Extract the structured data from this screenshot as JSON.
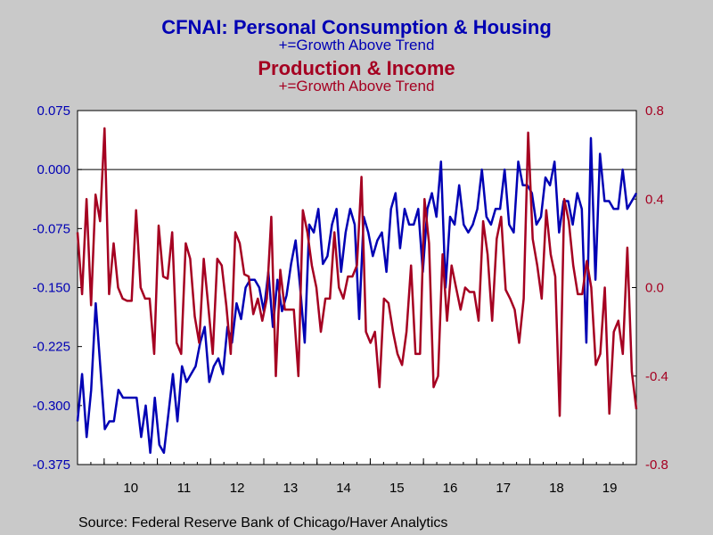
{
  "titles": {
    "blue_title": "CFNAI: Personal Consumption & Housing",
    "blue_subtitle": "+=Growth Above Trend",
    "red_title": "Production & Income",
    "red_subtitle": "+=Growth Above Trend"
  },
  "source": "Source:  Federal Reserve Bank of Chicago/Haver Analytics",
  "colors": {
    "blue": "#0000b4",
    "red": "#a50021",
    "background": "#c9c9c9",
    "plot_background": "#ffffff"
  },
  "chart_data": {
    "type": "line",
    "x": {
      "ticks": [
        "10",
        "11",
        "12",
        "13",
        "14",
        "15",
        "16",
        "17",
        "18",
        "19"
      ]
    },
    "left_axis": {
      "ylim": [
        -0.375,
        0.075
      ],
      "ticks": [
        0.075,
        0.0,
        -0.075,
        -0.15,
        -0.225,
        -0.3,
        -0.375
      ],
      "tick_labels": [
        "0.075",
        "0.000",
        "-0.075",
        "-0.150",
        "-0.225",
        "-0.300",
        "-0.375"
      ],
      "color": "#0000b4"
    },
    "right_axis": {
      "ylim": [
        -0.8,
        0.8
      ],
      "ticks": [
        0.8,
        0.4,
        0.0,
        -0.4,
        -0.8
      ],
      "tick_labels": [
        "0.8",
        "0.4",
        "0.0",
        "-0.4",
        "-0.8"
      ],
      "color": "#a50021"
    },
    "zero_line": true,
    "grid": false,
    "series": [
      {
        "axis": "left",
        "color": "#0000b4",
        "values": [
          -0.32,
          -0.26,
          -0.34,
          -0.28,
          -0.17,
          -0.25,
          -0.33,
          -0.32,
          -0.32,
          -0.28,
          -0.29,
          -0.29,
          -0.29,
          -0.29,
          -0.34,
          -0.3,
          -0.36,
          -0.29,
          -0.35,
          -0.36,
          -0.31,
          -0.26,
          -0.32,
          -0.25,
          -0.27,
          -0.26,
          -0.25,
          -0.22,
          -0.2,
          -0.27,
          -0.25,
          -0.24,
          -0.26,
          -0.2,
          -0.22,
          -0.17,
          -0.19,
          -0.15,
          -0.14,
          -0.14,
          -0.15,
          -0.18,
          -0.13,
          -0.2,
          -0.14,
          -0.18,
          -0.16,
          -0.12,
          -0.09,
          -0.15,
          -0.22,
          -0.07,
          -0.08,
          -0.05,
          -0.12,
          -0.11,
          -0.07,
          -0.05,
          -0.13,
          -0.08,
          -0.05,
          -0.07,
          -0.19,
          -0.06,
          -0.08,
          -0.11,
          -0.09,
          -0.08,
          -0.13,
          -0.05,
          -0.03,
          -0.1,
          -0.05,
          -0.07,
          -0.07,
          -0.05,
          -0.13,
          -0.05,
          -0.03,
          -0.06,
          0.01,
          -0.15,
          -0.06,
          -0.07,
          -0.02,
          -0.07,
          -0.08,
          -0.07,
          -0.05,
          0.0,
          -0.06,
          -0.07,
          -0.05,
          -0.05,
          0.0,
          -0.07,
          -0.08,
          0.01,
          -0.02,
          -0.02,
          -0.03,
          -0.07,
          -0.06,
          -0.01,
          -0.02,
          0.01,
          -0.08,
          -0.04,
          -0.04,
          -0.07,
          -0.03,
          -0.05,
          -0.22,
          0.04,
          -0.14,
          0.02,
          -0.04,
          -0.04,
          -0.05,
          -0.05,
          0.0,
          -0.05,
          -0.04,
          -0.03
        ]
      },
      {
        "axis": "right",
        "color": "#a50021",
        "values": [
          0.25,
          -0.03,
          0.4,
          -0.08,
          0.42,
          0.3,
          0.72,
          -0.03,
          0.2,
          0.0,
          -0.05,
          -0.06,
          -0.06,
          0.35,
          0.0,
          -0.05,
          -0.05,
          -0.3,
          0.28,
          0.05,
          0.04,
          0.25,
          -0.25,
          -0.3,
          0.2,
          0.13,
          -0.13,
          -0.25,
          0.13,
          -0.08,
          -0.3,
          0.13,
          0.1,
          -0.08,
          -0.3,
          0.25,
          0.2,
          0.06,
          0.05,
          -0.12,
          -0.05,
          -0.15,
          -0.05,
          0.32,
          -0.4,
          0.08,
          -0.1,
          -0.1,
          -0.1,
          -0.4,
          0.35,
          0.25,
          0.1,
          0.0,
          -0.2,
          -0.05,
          -0.05,
          0.25,
          0.0,
          -0.05,
          0.05,
          0.05,
          0.1,
          0.5,
          -0.2,
          -0.25,
          -0.2,
          -0.45,
          -0.05,
          -0.07,
          -0.2,
          -0.3,
          -0.35,
          -0.2,
          0.1,
          -0.3,
          -0.3,
          0.4,
          0.2,
          -0.45,
          -0.4,
          0.15,
          -0.15,
          0.1,
          0.0,
          -0.1,
          0.0,
          -0.02,
          -0.02,
          -0.15,
          0.3,
          0.15,
          -0.15,
          0.22,
          0.32,
          -0.01,
          -0.05,
          -0.1,
          -0.25,
          -0.05,
          0.7,
          0.22,
          0.1,
          -0.05,
          0.35,
          0.15,
          0.05,
          -0.58,
          0.4,
          0.3,
          0.1,
          -0.03,
          -0.03,
          0.12,
          0.0,
          -0.35,
          -0.3,
          0.0,
          -0.57,
          -0.2,
          -0.15,
          -0.3,
          0.18,
          -0.38,
          -0.55
        ]
      }
    ]
  }
}
